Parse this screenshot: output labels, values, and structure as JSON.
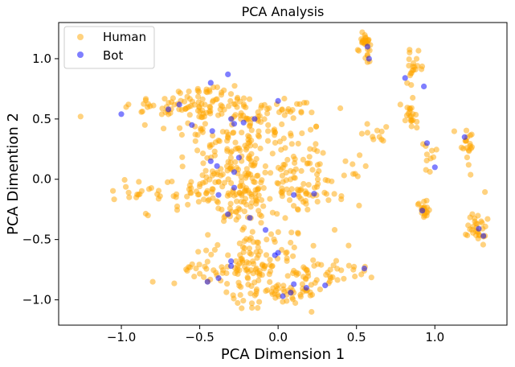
{
  "chart_data": {
    "type": "scatter",
    "title": "PCA Analysis",
    "xlabel": "PCA Dimension 1",
    "ylabel": "PCA Dimention 2",
    "xlim": [
      -1.4,
      1.46
    ],
    "ylim": [
      -1.21,
      1.3
    ],
    "xticks": [
      -1.0,
      -0.5,
      0.0,
      0.5,
      1.0
    ],
    "xtick_labels": [
      "−1.0",
      "−0.5",
      "0.0",
      "0.5",
      "1.0"
    ],
    "yticks": [
      -1.0,
      -0.5,
      0.0,
      0.5,
      1.0
    ],
    "ytick_labels": [
      "−1.0",
      "−0.5",
      "0.0",
      "0.5",
      "1.0"
    ],
    "grid": false,
    "legend_position": "top-left",
    "series": [
      {
        "name": "Human",
        "color": "#ffa500",
        "alpha": 0.5,
        "clusters": [
          {
            "cx": -0.55,
            "cy": 0.6,
            "sx": 0.22,
            "sy": 0.05,
            "n": 70
          },
          {
            "cx": -0.25,
            "cy": 0.57,
            "sx": 0.1,
            "sy": 0.06,
            "n": 25
          },
          {
            "cx": 0.05,
            "cy": 0.58,
            "sx": 0.15,
            "sy": 0.06,
            "n": 25
          },
          {
            "cx": -0.45,
            "cy": 0.72,
            "sx": 0.12,
            "sy": 0.04,
            "n": 20
          },
          {
            "cx": -0.3,
            "cy": 0.4,
            "sx": 0.2,
            "sy": 0.07,
            "n": 40
          },
          {
            "cx": -0.05,
            "cy": 0.35,
            "sx": 0.18,
            "sy": 0.07,
            "n": 30
          },
          {
            "cx": -0.5,
            "cy": -0.1,
            "sx": 0.22,
            "sy": 0.08,
            "n": 80
          },
          {
            "cx": -0.3,
            "cy": 0.05,
            "sx": 0.12,
            "sy": 0.1,
            "n": 40
          },
          {
            "cx": -0.1,
            "cy": -0.1,
            "sx": 0.15,
            "sy": 0.12,
            "n": 50
          },
          {
            "cx": -0.3,
            "cy": 0.2,
            "sx": 0.18,
            "sy": 0.06,
            "n": 30
          },
          {
            "cx": 0.1,
            "cy": 0.15,
            "sx": 0.12,
            "sy": 0.08,
            "n": 25
          },
          {
            "cx": 0.3,
            "cy": -0.05,
            "sx": 0.12,
            "sy": 0.08,
            "n": 35
          },
          {
            "cx": 0.12,
            "cy": -0.1,
            "sx": 0.1,
            "sy": 0.05,
            "n": 15
          },
          {
            "cx": -0.2,
            "cy": -0.3,
            "sx": 0.1,
            "sy": 0.07,
            "n": 25
          },
          {
            "cx": -0.2,
            "cy": -0.55,
            "sx": 0.15,
            "sy": 0.05,
            "n": 20
          },
          {
            "cx": 0.0,
            "cy": -0.5,
            "sx": 0.12,
            "sy": 0.06,
            "n": 20
          },
          {
            "cx": -0.35,
            "cy": -0.75,
            "sx": 0.15,
            "sy": 0.06,
            "n": 50
          },
          {
            "cx": -0.08,
            "cy": -0.72,
            "sx": 0.12,
            "sy": 0.06,
            "n": 30
          },
          {
            "cx": 0.2,
            "cy": -0.75,
            "sx": 0.12,
            "sy": 0.05,
            "n": 25
          },
          {
            "cx": 0.35,
            "cy": -0.82,
            "sx": 0.1,
            "sy": 0.06,
            "n": 20
          },
          {
            "cx": 0.05,
            "cy": -0.95,
            "sx": 0.12,
            "sy": 0.05,
            "n": 40
          },
          {
            "cx": -0.2,
            "cy": -0.97,
            "sx": 0.1,
            "sy": 0.06,
            "n": 20
          },
          {
            "cx": 0.55,
            "cy": 1.15,
            "sx": 0.02,
            "sy": 0.04,
            "n": 25
          },
          {
            "cx": 0.58,
            "cy": 1.02,
            "sx": 0.01,
            "sy": 0.03,
            "n": 6
          },
          {
            "cx": 0.87,
            "cy": 0.93,
            "sx": 0.03,
            "sy": 0.06,
            "n": 20
          },
          {
            "cx": 0.84,
            "cy": 0.48,
            "sx": 0.02,
            "sy": 0.08,
            "n": 20
          },
          {
            "cx": 0.62,
            "cy": 0.4,
            "sx": 0.04,
            "sy": 0.05,
            "n": 10
          },
          {
            "cx": 0.97,
            "cy": 0.15,
            "sx": 0.04,
            "sy": 0.08,
            "n": 10
          },
          {
            "cx": 1.2,
            "cy": 0.3,
            "sx": 0.03,
            "sy": 0.1,
            "n": 20
          },
          {
            "cx": 0.93,
            "cy": -0.25,
            "sx": 0.02,
            "sy": 0.04,
            "n": 20
          },
          {
            "cx": 1.27,
            "cy": -0.38,
            "sx": 0.03,
            "sy": 0.08,
            "n": 30
          }
        ],
        "extra_points": [
          [
            -1.26,
            0.52
          ],
          [
            -0.85,
            0.45
          ],
          [
            -0.95,
            -0.15
          ],
          [
            -0.83,
            -0.3
          ],
          [
            -0.8,
            -0.85
          ],
          [
            0.45,
            -0.55
          ],
          [
            0.48,
            -0.75
          ],
          [
            0.43,
            0.15
          ],
          [
            0.52,
            0.2
          ],
          [
            1.32,
            -0.47
          ],
          [
            0.66,
            0.33
          ],
          [
            0.78,
            0.62
          ]
        ]
      },
      {
        "name": "Bot",
        "color": "#0000ff",
        "alpha": 0.5,
        "points": [
          [
            -1.0,
            0.54
          ],
          [
            -0.7,
            0.58
          ],
          [
            -0.63,
            0.62
          ],
          [
            -0.55,
            0.45
          ],
          [
            -0.43,
            0.8
          ],
          [
            -0.32,
            0.87
          ],
          [
            -0.3,
            0.5
          ],
          [
            -0.22,
            0.47
          ],
          [
            -0.15,
            0.5
          ],
          [
            0.0,
            0.65
          ],
          [
            -0.42,
            0.4
          ],
          [
            -0.28,
            0.46
          ],
          [
            -0.43,
            0.15
          ],
          [
            -0.39,
            0.11
          ],
          [
            -0.28,
            0.06
          ],
          [
            -0.25,
            0.18
          ],
          [
            -0.38,
            -0.13
          ],
          [
            -0.28,
            -0.07
          ],
          [
            -0.18,
            -0.32
          ],
          [
            -0.32,
            -0.29
          ],
          [
            -0.08,
            -0.42
          ],
          [
            0.1,
            -0.13
          ],
          [
            0.23,
            -0.12
          ],
          [
            -0.3,
            -0.68
          ],
          [
            -0.3,
            -0.72
          ],
          [
            -0.45,
            -0.85
          ],
          [
            -0.38,
            -0.82
          ],
          [
            -0.02,
            -0.63
          ],
          [
            0.0,
            -0.61
          ],
          [
            0.1,
            -0.87
          ],
          [
            0.08,
            -0.94
          ],
          [
            0.03,
            -0.97
          ],
          [
            0.18,
            -0.9
          ],
          [
            0.3,
            -0.88
          ],
          [
            0.55,
            -0.74
          ],
          [
            0.57,
            1.1
          ],
          [
            0.58,
            1.0
          ],
          [
            0.81,
            0.84
          ],
          [
            0.93,
            0.77
          ],
          [
            0.95,
            0.3
          ],
          [
            1.0,
            0.1
          ],
          [
            0.92,
            -0.26
          ],
          [
            1.19,
            0.35
          ],
          [
            1.28,
            -0.41
          ],
          [
            1.31,
            -0.47
          ]
        ]
      }
    ]
  }
}
